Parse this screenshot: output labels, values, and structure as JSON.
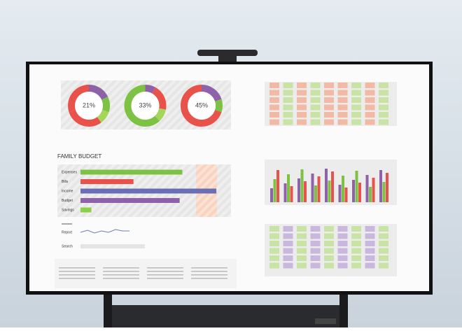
{
  "donuts": [
    {
      "label": "21%"
    },
    {
      "label": "33%"
    },
    {
      "label": "45%"
    }
  ],
  "budget": {
    "title": "FAMILY BUDGET",
    "rows": [
      {
        "label": "Expenses",
        "value": 75,
        "color": "#7dc242"
      },
      {
        "label": "Bills",
        "value": 39,
        "color": "#e8524a"
      },
      {
        "label": "Income",
        "value": 100,
        "color": "#6a6fb5"
      },
      {
        "label": "Budget",
        "value": 73,
        "color": "#8e62a8"
      },
      {
        "label": "Savings",
        "value": 8,
        "color": "#8cd04a"
      }
    ]
  },
  "report": {
    "label": "Report"
  },
  "search": {
    "label": "Search"
  }
}
